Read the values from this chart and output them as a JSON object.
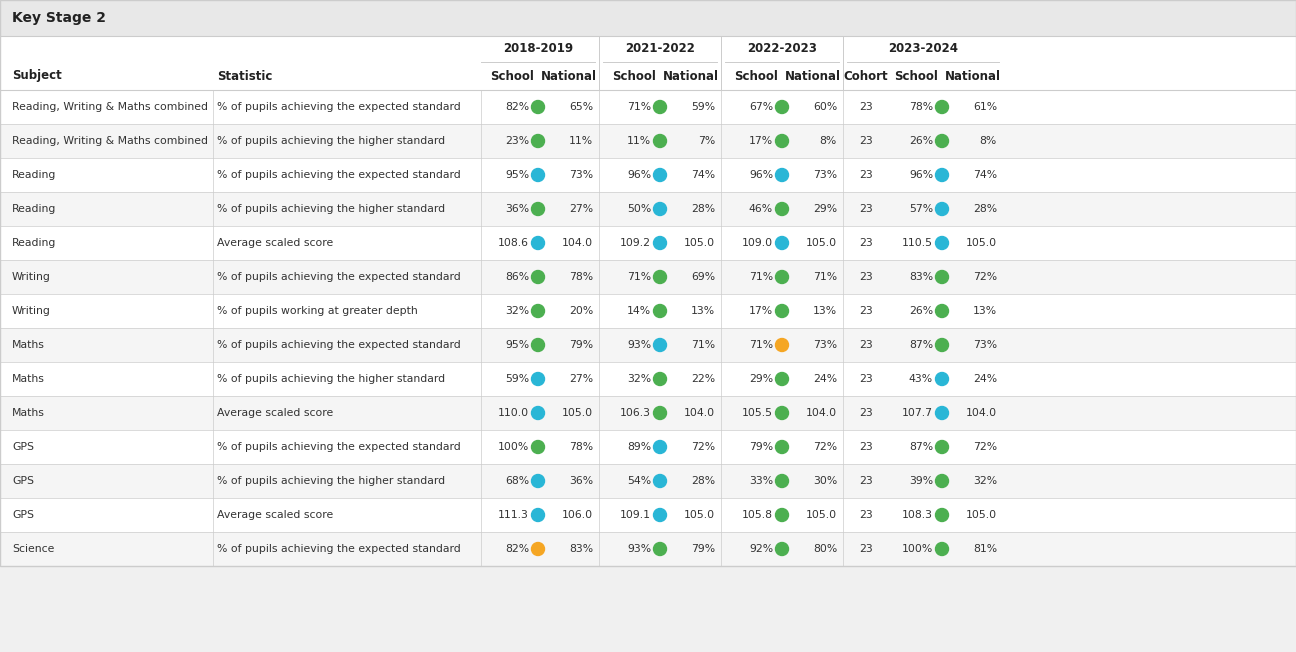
{
  "title": "Key Stage 2",
  "header_years": [
    "2018-2019",
    "2021-2022",
    "2022-2023",
    "2023-2024"
  ],
  "bg_color": "#f0f0f0",
  "header_bg": "#ffffff",
  "title_bg": "#e8e8e8",
  "row_even_color": "#ffffff",
  "row_odd_color": "#f5f5f5",
  "border_color": "#cccccc",
  "text_color": "#333333",
  "header_text_color": "#222222",
  "dot_green": "#4caf50",
  "dot_blue": "#29b6d6",
  "dot_orange": "#f5a623",
  "rows": [
    {
      "subject": "Reading, Writing & Maths combined",
      "statistic": "% of pupils achieving the expected standard",
      "data": [
        {
          "school": "82%",
          "school_dot": "green",
          "national": "65%"
        },
        {
          "school": "71%",
          "school_dot": "green",
          "national": "59%"
        },
        {
          "school": "67%",
          "school_dot": "green",
          "national": "60%"
        },
        {
          "cohort": "23",
          "school": "78%",
          "school_dot": "green",
          "national": "61%"
        }
      ]
    },
    {
      "subject": "Reading, Writing & Maths combined",
      "statistic": "% of pupils achieving the higher standard",
      "data": [
        {
          "school": "23%",
          "school_dot": "green",
          "national": "11%"
        },
        {
          "school": "11%",
          "school_dot": "green",
          "national": "7%"
        },
        {
          "school": "17%",
          "school_dot": "green",
          "national": "8%"
        },
        {
          "cohort": "23",
          "school": "26%",
          "school_dot": "green",
          "national": "8%"
        }
      ]
    },
    {
      "subject": "Reading",
      "statistic": "% of pupils achieving the expected standard",
      "data": [
        {
          "school": "95%",
          "school_dot": "blue",
          "national": "73%"
        },
        {
          "school": "96%",
          "school_dot": "blue",
          "national": "74%"
        },
        {
          "school": "96%",
          "school_dot": "blue",
          "national": "73%"
        },
        {
          "cohort": "23",
          "school": "96%",
          "school_dot": "blue",
          "national": "74%"
        }
      ]
    },
    {
      "subject": "Reading",
      "statistic": "% of pupils achieving the higher standard",
      "data": [
        {
          "school": "36%",
          "school_dot": "green",
          "national": "27%"
        },
        {
          "school": "50%",
          "school_dot": "blue",
          "national": "28%"
        },
        {
          "school": "46%",
          "school_dot": "green",
          "national": "29%"
        },
        {
          "cohort": "23",
          "school": "57%",
          "school_dot": "blue",
          "national": "28%"
        }
      ]
    },
    {
      "subject": "Reading",
      "statistic": "Average scaled score",
      "data": [
        {
          "school": "108.6",
          "school_dot": "blue",
          "national": "104.0"
        },
        {
          "school": "109.2",
          "school_dot": "blue",
          "national": "105.0"
        },
        {
          "school": "109.0",
          "school_dot": "blue",
          "national": "105.0"
        },
        {
          "cohort": "23",
          "school": "110.5",
          "school_dot": "blue",
          "national": "105.0"
        }
      ]
    },
    {
      "subject": "Writing",
      "statistic": "% of pupils achieving the expected standard",
      "data": [
        {
          "school": "86%",
          "school_dot": "green",
          "national": "78%"
        },
        {
          "school": "71%",
          "school_dot": "green",
          "national": "69%"
        },
        {
          "school": "71%",
          "school_dot": "green",
          "national": "71%"
        },
        {
          "cohort": "23",
          "school": "83%",
          "school_dot": "green",
          "national": "72%"
        }
      ]
    },
    {
      "subject": "Writing",
      "statistic": "% of pupils working at greater depth",
      "data": [
        {
          "school": "32%",
          "school_dot": "green",
          "national": "20%"
        },
        {
          "school": "14%",
          "school_dot": "green",
          "national": "13%"
        },
        {
          "school": "17%",
          "school_dot": "green",
          "national": "13%"
        },
        {
          "cohort": "23",
          "school": "26%",
          "school_dot": "green",
          "national": "13%"
        }
      ]
    },
    {
      "subject": "Maths",
      "statistic": "% of pupils achieving the expected standard",
      "data": [
        {
          "school": "95%",
          "school_dot": "green",
          "national": "79%"
        },
        {
          "school": "93%",
          "school_dot": "blue",
          "national": "71%"
        },
        {
          "school": "71%",
          "school_dot": "orange",
          "national": "73%"
        },
        {
          "cohort": "23",
          "school": "87%",
          "school_dot": "green",
          "national": "73%"
        }
      ]
    },
    {
      "subject": "Maths",
      "statistic": "% of pupils achieving the higher standard",
      "data": [
        {
          "school": "59%",
          "school_dot": "blue",
          "national": "27%"
        },
        {
          "school": "32%",
          "school_dot": "green",
          "national": "22%"
        },
        {
          "school": "29%",
          "school_dot": "green",
          "national": "24%"
        },
        {
          "cohort": "23",
          "school": "43%",
          "school_dot": "blue",
          "national": "24%"
        }
      ]
    },
    {
      "subject": "Maths",
      "statistic": "Average scaled score",
      "data": [
        {
          "school": "110.0",
          "school_dot": "blue",
          "national": "105.0"
        },
        {
          "school": "106.3",
          "school_dot": "green",
          "national": "104.0"
        },
        {
          "school": "105.5",
          "school_dot": "green",
          "national": "104.0"
        },
        {
          "cohort": "23",
          "school": "107.7",
          "school_dot": "blue",
          "national": "104.0"
        }
      ]
    },
    {
      "subject": "GPS",
      "statistic": "% of pupils achieving the expected standard",
      "data": [
        {
          "school": "100%",
          "school_dot": "green",
          "national": "78%"
        },
        {
          "school": "89%",
          "school_dot": "blue",
          "national": "72%"
        },
        {
          "school": "79%",
          "school_dot": "green",
          "national": "72%"
        },
        {
          "cohort": "23",
          "school": "87%",
          "school_dot": "green",
          "national": "72%"
        }
      ]
    },
    {
      "subject": "GPS",
      "statistic": "% of pupils achieving the higher standard",
      "data": [
        {
          "school": "68%",
          "school_dot": "blue",
          "national": "36%"
        },
        {
          "school": "54%",
          "school_dot": "blue",
          "national": "28%"
        },
        {
          "school": "33%",
          "school_dot": "green",
          "national": "30%"
        },
        {
          "cohort": "23",
          "school": "39%",
          "school_dot": "green",
          "national": "32%"
        }
      ]
    },
    {
      "subject": "GPS",
      "statistic": "Average scaled score",
      "data": [
        {
          "school": "111.3",
          "school_dot": "blue",
          "national": "106.0"
        },
        {
          "school": "109.1",
          "school_dot": "blue",
          "national": "105.0"
        },
        {
          "school": "105.8",
          "school_dot": "green",
          "national": "105.0"
        },
        {
          "cohort": "23",
          "school": "108.3",
          "school_dot": "green",
          "national": "105.0"
        }
      ]
    },
    {
      "subject": "Science",
      "statistic": "% of pupils achieving the expected standard",
      "data": [
        {
          "school": "82%",
          "school_dot": "orange",
          "national": "83%"
        },
        {
          "school": "93%",
          "school_dot": "green",
          "national": "79%"
        },
        {
          "school": "92%",
          "school_dot": "green",
          "national": "80%"
        },
        {
          "cohort": "23",
          "school": "100%",
          "school_dot": "green",
          "national": "81%"
        }
      ]
    }
  ]
}
